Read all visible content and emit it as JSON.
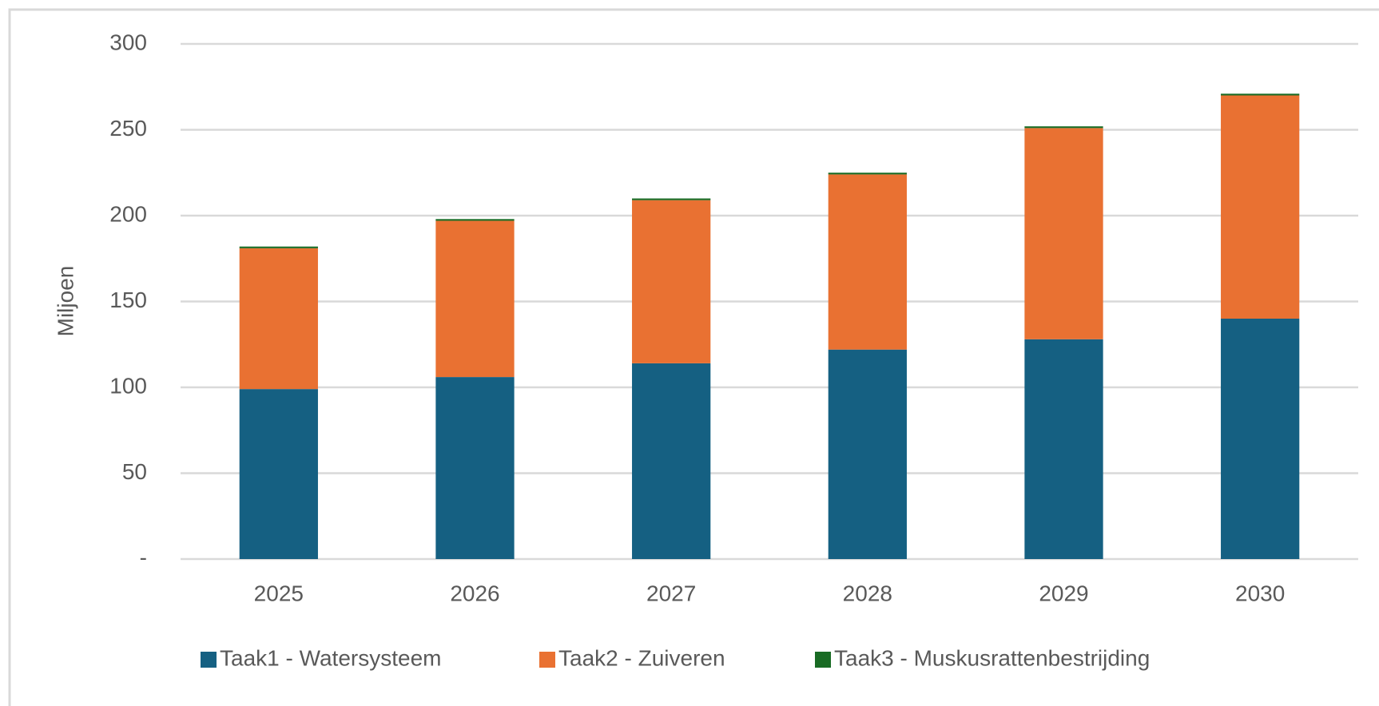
{
  "chart_data": {
    "type": "stacked_bar",
    "y_label": "Miljoen",
    "categories": [
      "2025",
      "2026",
      "2027",
      "2028",
      "2029",
      "2030"
    ],
    "series": [
      {
        "name": "Taak1 - Watersysteem",
        "color": "#156082",
        "values": [
          99,
          106,
          114,
          122,
          128,
          140
        ]
      },
      {
        "name": "Taak2 - Zuiveren",
        "color": "#e97132",
        "values": [
          82,
          91,
          95,
          102,
          123,
          130
        ]
      },
      {
        "name": "Taak3 - Muskusrattenbestrijding",
        "color": "#196b24",
        "values": [
          1,
          1,
          1,
          1,
          1,
          1
        ]
      }
    ],
    "ylim": [
      0,
      300
    ],
    "yticks": [
      {
        "value": 0,
        "label": "-"
      },
      50,
      100,
      150,
      200,
      250,
      300
    ],
    "grid": true,
    "legend": "bottom"
  }
}
